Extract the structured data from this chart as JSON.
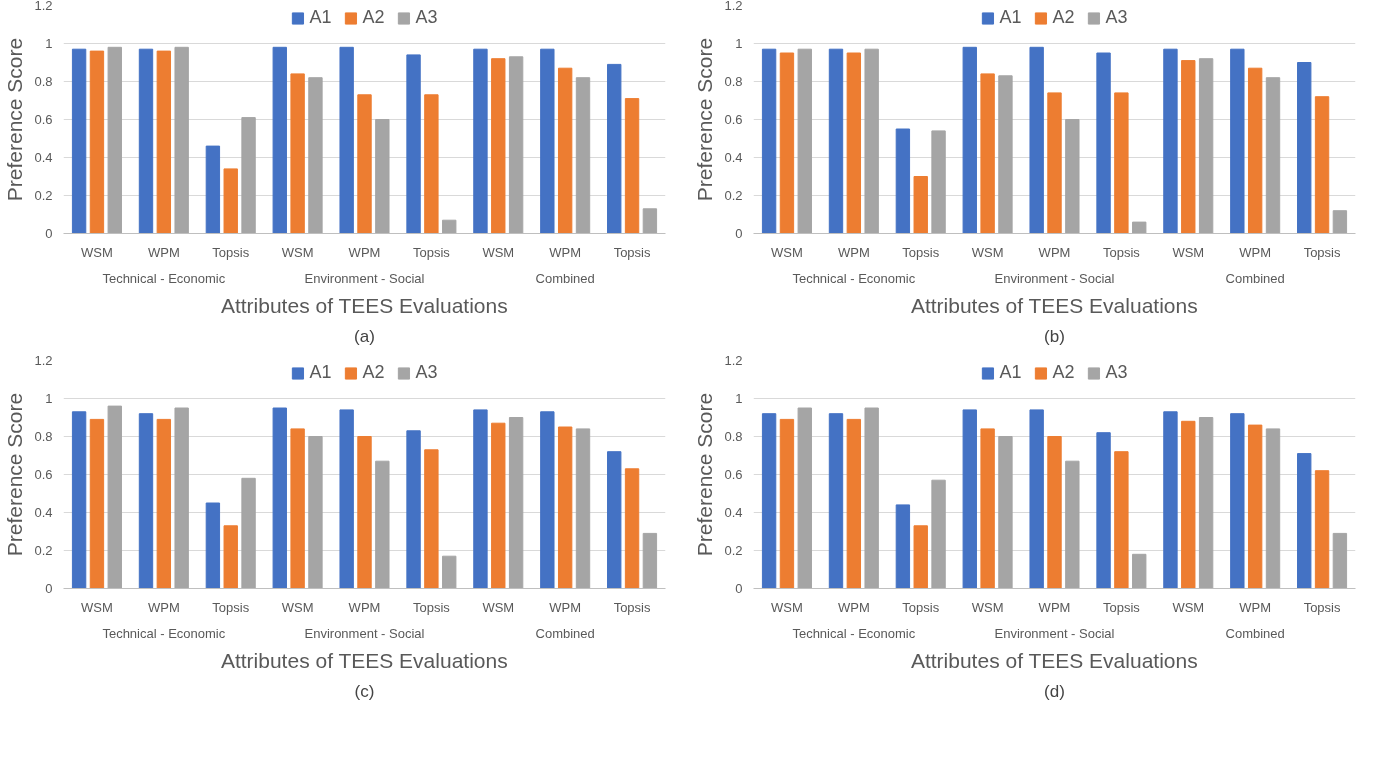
{
  "chart_data": [
    {
      "type": "bar",
      "subtitle": "(a)",
      "xlabel": "Attributes of TEES Evaluations",
      "ylabel": "Preference Score",
      "categories": [
        "WSM",
        "WPM",
        "Topsis",
        "WSM",
        "WPM",
        "Topsis",
        "WSM",
        "WPM",
        "Topsis"
      ],
      "annotations": [
        "Technical - Economic",
        "Environment - Social",
        "Combined"
      ],
      "ylim": [
        0,
        1.2
      ],
      "yticks": [
        0,
        0.2,
        0.4,
        0.6,
        0.8,
        1,
        1.2
      ],
      "grid": "y",
      "legend": "top",
      "series": [
        {
          "name": "A1",
          "color": "#4472c4",
          "values": [
            0.97,
            0.97,
            0.46,
            0.98,
            0.98,
            0.94,
            0.97,
            0.97,
            0.89
          ]
        },
        {
          "name": "A2",
          "color": "#ed7d31",
          "values": [
            0.96,
            0.96,
            0.34,
            0.84,
            0.73,
            0.73,
            0.92,
            0.87,
            0.71
          ]
        },
        {
          "name": "A3",
          "color": "#a5a5a5",
          "values": [
            0.98,
            0.98,
            0.61,
            0.82,
            0.6,
            0.07,
            0.93,
            0.82,
            0.13
          ]
        }
      ]
    },
    {
      "type": "bar",
      "subtitle": "(b)",
      "xlabel": "Attributes of TEES Evaluations",
      "ylabel": "Preference Score",
      "categories": [
        "WSM",
        "WPM",
        "Topsis",
        "WSM",
        "WPM",
        "Topsis",
        "WSM",
        "WPM",
        "Topsis"
      ],
      "annotations": [
        "Technical - Economic",
        "Environment - Social",
        "Combined"
      ],
      "ylim": [
        0,
        1.2
      ],
      "yticks": [
        0,
        0.2,
        0.4,
        0.6,
        0.8,
        1,
        1.2
      ],
      "grid": "y",
      "legend": "top",
      "series": [
        {
          "name": "A1",
          "color": "#4472c4",
          "values": [
            0.97,
            0.97,
            0.55,
            0.98,
            0.98,
            0.95,
            0.97,
            0.97,
            0.9
          ]
        },
        {
          "name": "A2",
          "color": "#ed7d31",
          "values": [
            0.95,
            0.95,
            0.3,
            0.84,
            0.74,
            0.74,
            0.91,
            0.87,
            0.72
          ]
        },
        {
          "name": "A3",
          "color": "#a5a5a5",
          "values": [
            0.97,
            0.97,
            0.54,
            0.83,
            0.6,
            0.06,
            0.92,
            0.82,
            0.12
          ]
        }
      ]
    },
    {
      "type": "bar",
      "subtitle": "(c)",
      "xlabel": "Attributes of TEES Evaluations",
      "ylabel": "Preference Score",
      "categories": [
        "WSM",
        "WPM",
        "Topsis",
        "WSM",
        "WPM",
        "Topsis",
        "WSM",
        "WPM",
        "Topsis"
      ],
      "annotations": [
        "Technical - Economic",
        "Environment - Social",
        "Combined"
      ],
      "ylim": [
        0,
        1.2
      ],
      "yticks": [
        0,
        0.2,
        0.4,
        0.6,
        0.8,
        1,
        1.2
      ],
      "grid": "y",
      "legend": "top",
      "series": [
        {
          "name": "A1",
          "color": "#4472c4",
          "values": [
            0.93,
            0.92,
            0.45,
            0.95,
            0.94,
            0.83,
            0.94,
            0.93,
            0.72
          ]
        },
        {
          "name": "A2",
          "color": "#ed7d31",
          "values": [
            0.89,
            0.89,
            0.33,
            0.84,
            0.8,
            0.73,
            0.87,
            0.85,
            0.63
          ]
        },
        {
          "name": "A3",
          "color": "#a5a5a5",
          "values": [
            0.96,
            0.95,
            0.58,
            0.8,
            0.67,
            0.17,
            0.9,
            0.84,
            0.29
          ]
        }
      ]
    },
    {
      "type": "bar",
      "subtitle": "(d)",
      "xlabel": "Attributes of TEES Evaluations",
      "ylabel": "Preference Score",
      "categories": [
        "WSM",
        "WPM",
        "Topsis",
        "WSM",
        "WPM",
        "Topsis",
        "WSM",
        "WPM",
        "Topsis"
      ],
      "annotations": [
        "Technical - Economic",
        "Environment - Social",
        "Combined"
      ],
      "ylim": [
        0,
        1.2
      ],
      "yticks": [
        0,
        0.2,
        0.4,
        0.6,
        0.8,
        1,
        1.2
      ],
      "grid": "y",
      "legend": "top",
      "series": [
        {
          "name": "A1",
          "color": "#4472c4",
          "values": [
            0.92,
            0.92,
            0.44,
            0.94,
            0.94,
            0.82,
            0.93,
            0.92,
            0.71
          ]
        },
        {
          "name": "A2",
          "color": "#ed7d31",
          "values": [
            0.89,
            0.89,
            0.33,
            0.84,
            0.8,
            0.72,
            0.88,
            0.86,
            0.62
          ]
        },
        {
          "name": "A3",
          "color": "#a5a5a5",
          "values": [
            0.95,
            0.95,
            0.57,
            0.8,
            0.67,
            0.18,
            0.9,
            0.84,
            0.29
          ]
        }
      ]
    }
  ]
}
